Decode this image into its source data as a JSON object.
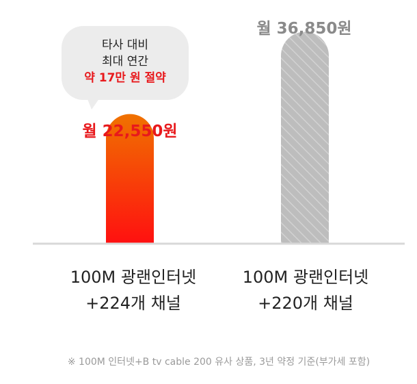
{
  "chart_data": {
    "type": "bar",
    "categories": [
      "100M 광랜인터넷\n+224개 채널",
      "100M 광랜인터넷\n+220개 채널"
    ],
    "values": [
      22550,
      36850
    ],
    "value_labels": [
      "월 22,550원",
      "월 36,850원"
    ],
    "colors": {
      "ours_top": "#f07200",
      "ours_bottom": "#ff1010",
      "theirs": "#bdbdbd",
      "theirs_stripe": "#d2d2d2",
      "baseline": "#d8d8d8"
    },
    "ylim": [
      0,
      40000
    ],
    "grid": false
  },
  "callout": {
    "lines": [
      "타사 대비",
      "최대 연간",
      "약 17만 원 절약"
    ]
  },
  "categories_display": [
    {
      "line1": "100M 광랜인터넷",
      "line2": "+224개 채널"
    },
    {
      "line1": "100M 광랜인터넷",
      "line2": "+220개 채널"
    }
  ],
  "footnote": "※ 100M 인터넷+B tv cable 200 유사 상품, 3년 약정 기준(부가세 포함)"
}
